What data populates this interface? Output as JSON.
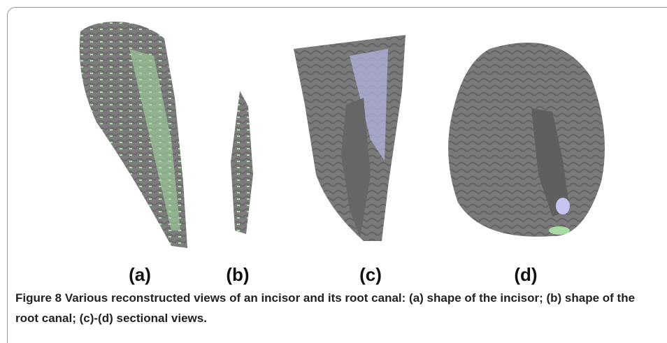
{
  "figure": {
    "panels": [
      {
        "label": "(a)"
      },
      {
        "label": "(b)"
      },
      {
        "label": "(c)"
      },
      {
        "label": "(d)"
      }
    ],
    "caption": "Figure 8 Various reconstructed views of an incisor and its root canal: (a) shape of the incisor; (b) shape of the root canal; (c)-(d) sectional views."
  }
}
